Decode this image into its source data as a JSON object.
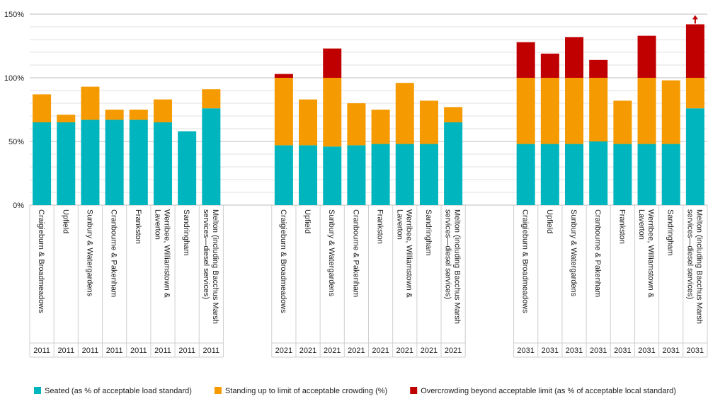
{
  "chart_data": {
    "type": "stacked-bar",
    "categories": [
      "Craigieburn & Broadmeadows",
      "Upfield",
      "Sunbury & Watergardens",
      "Cranbourne & Pakenham",
      "Frankston",
      "Werribee, Williamstown & Laverton",
      "Sandringham",
      "Melton (including Bacchus Marsh services—diesel services)",
      "Craigieburn & Broadmeadows",
      "Upfield",
      "Sunbury & Watergardens",
      "Cranbourne & Pakenham",
      "Frankston",
      "Werribee, Williamstown & Laverton",
      "Sandringham",
      "Melton (including Bacchus Marsh services—diesel services)",
      "Craigieburn & Broadmeadows",
      "Upfield",
      "Sunbury & Watergardens",
      "Cranbourne & Pakenham",
      "Frankston",
      "Werribee, Williamstown & Laverton",
      "Sandringham",
      "Melton (including Bacchus Marsh services—diesel services)"
    ],
    "years": [
      "2011",
      "2011",
      "2011",
      "2011",
      "2011",
      "2011",
      "2011",
      "2011",
      "2021",
      "2021",
      "2021",
      "2021",
      "2021",
      "2021",
      "2021",
      "2021",
      "2031",
      "2031",
      "2031",
      "2031",
      "2031",
      "2031",
      "2031",
      "2031"
    ],
    "series": [
      {
        "name": "Seated (as % of acceptable load standard)",
        "color": "#00b5bd",
        "values": [
          65,
          65,
          67,
          67,
          67,
          65,
          58,
          76,
          47,
          47,
          46,
          47,
          48,
          48,
          48,
          65,
          48,
          48,
          48,
          50,
          48,
          48,
          48,
          76
        ]
      },
      {
        "name": "Standing up to limit of acceptable crowding (%)",
        "color": "#f59a00",
        "values": [
          22,
          6,
          26,
          8,
          8,
          18,
          0,
          15,
          53,
          36,
          54,
          33,
          27,
          48,
          34,
          12,
          52,
          52,
          52,
          50,
          34,
          52,
          50,
          24
        ]
      },
      {
        "name": "Overcrowding beyond acceptable limit (as % of acceptable local standard)",
        "color": "#c00000",
        "values": [
          0,
          0,
          0,
          0,
          0,
          0,
          0,
          0,
          3,
          0,
          23,
          0,
          0,
          0,
          0,
          0,
          28,
          19,
          32,
          14,
          0,
          33,
          0,
          42
        ]
      }
    ],
    "ylim": [
      0,
      150
    ],
    "yticks": [
      {
        "value": 0,
        "label": "0%"
      },
      {
        "value": 50,
        "label": "50%"
      },
      {
        "value": 100,
        "label": "100%"
      },
      {
        "value": 150,
        "label": "150%"
      }
    ],
    "minor_yticks": [
      10,
      20,
      30,
      40,
      60,
      70,
      80,
      90,
      110,
      120,
      130,
      140
    ],
    "grid": true,
    "legend": "bottom"
  }
}
